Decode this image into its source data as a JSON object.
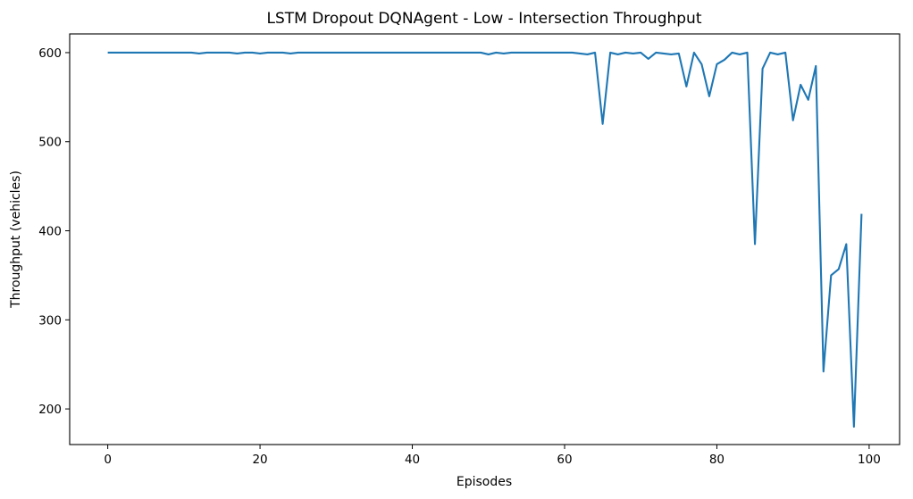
{
  "chart_data": {
    "type": "line",
    "title": "LSTM Dropout DQNAgent - Low - Intersection Throughput",
    "xlabel": "Episodes",
    "ylabel": "Throughput (vehicles)",
    "xlim": [
      -5,
      104
    ],
    "ylim": [
      160,
      621
    ],
    "xticks": [
      0,
      20,
      40,
      60,
      80,
      100
    ],
    "yticks": [
      200,
      300,
      400,
      500,
      600
    ],
    "grid": false,
    "legend": "none",
    "series": [
      {
        "color": "#1f77b4",
        "x": [
          0,
          1,
          2,
          3,
          4,
          5,
          6,
          7,
          8,
          9,
          10,
          11,
          12,
          13,
          14,
          15,
          16,
          17,
          18,
          19,
          20,
          21,
          22,
          23,
          24,
          25,
          26,
          27,
          28,
          29,
          30,
          31,
          32,
          33,
          34,
          35,
          36,
          37,
          38,
          39,
          40,
          41,
          42,
          43,
          44,
          45,
          46,
          47,
          48,
          49,
          50,
          51,
          52,
          53,
          54,
          55,
          56,
          57,
          58,
          59,
          60,
          61,
          62,
          63,
          64,
          65,
          66,
          67,
          68,
          69,
          70,
          71,
          72,
          73,
          74,
          75,
          76,
          77,
          78,
          79,
          80,
          81,
          82,
          83,
          84,
          85,
          86,
          87,
          88,
          89,
          90,
          91,
          92,
          93,
          94,
          95,
          96,
          97,
          98,
          99
        ],
        "y": [
          600,
          600,
          600,
          600,
          600,
          600,
          600,
          600,
          600,
          600,
          600,
          600,
          599,
          600,
          600,
          600,
          600,
          599,
          600,
          600,
          599,
          600,
          600,
          600,
          599,
          600,
          600,
          600,
          600,
          600,
          600,
          600,
          600,
          600,
          600,
          600,
          600,
          600,
          600,
          600,
          600,
          600,
          600,
          600,
          600,
          600,
          600,
          600,
          600,
          600,
          598,
          600,
          599,
          600,
          600,
          600,
          600,
          600,
          600,
          600,
          600,
          600,
          599,
          598,
          600,
          520,
          600,
          598,
          600,
          599,
          600,
          593,
          600,
          599,
          598,
          599,
          562,
          600,
          587,
          551,
          587,
          592,
          600,
          598,
          600,
          385,
          582,
          600,
          598,
          600,
          524,
          564,
          547,
          585,
          242,
          350,
          357,
          385,
          180,
          419
        ]
      }
    ]
  }
}
